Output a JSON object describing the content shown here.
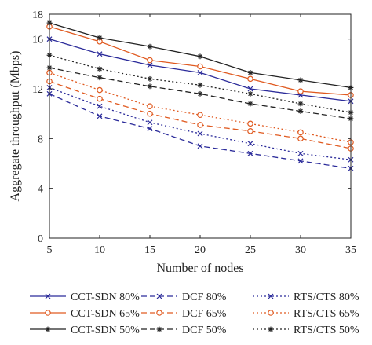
{
  "chart_data": {
    "type": "line",
    "title": "",
    "xlabel": "Number of nodes",
    "ylabel": "Aggregate throughput (Mbps)",
    "x": [
      5,
      10,
      15,
      20,
      25,
      30,
      35
    ],
    "xlim": [
      5,
      35
    ],
    "ylim": [
      0,
      18
    ],
    "xticks": [
      "5",
      "10",
      "15",
      "20",
      "25",
      "30",
      "35"
    ],
    "yticks": [
      "0",
      "4",
      "8",
      "12",
      "16",
      "18"
    ],
    "grid": false,
    "legend_position": "bottom, outside plot area, 3 columns",
    "series": [
      {
        "name": "CCT-SDN 80%",
        "values": [
          16.0,
          14.8,
          13.9,
          13.3,
          12.0,
          11.5,
          11.0
        ],
        "color": "#2b2b9a",
        "dash": "solid",
        "marker": "x"
      },
      {
        "name": "CCT-SDN 65%",
        "values": [
          17.0,
          15.8,
          14.3,
          13.8,
          12.8,
          11.8,
          11.5
        ],
        "color": "#e05a20",
        "dash": "solid",
        "marker": "o"
      },
      {
        "name": "CCT-SDN 50%",
        "values": [
          17.3,
          16.1,
          15.4,
          14.6,
          13.3,
          12.7,
          12.1
        ],
        "color": "#222222",
        "dash": "solid",
        "marker": "*"
      },
      {
        "name": "DCF 80%",
        "values": [
          11.6,
          9.8,
          8.8,
          7.4,
          6.8,
          6.2,
          5.6
        ],
        "color": "#2b2b9a",
        "dash": "dashed",
        "marker": "x"
      },
      {
        "name": "DCF 65%",
        "values": [
          12.6,
          11.2,
          10.0,
          9.1,
          8.6,
          8.0,
          7.2
        ],
        "color": "#e05a20",
        "dash": "dashed",
        "marker": "o"
      },
      {
        "name": "DCF 50%",
        "values": [
          13.7,
          12.9,
          12.2,
          11.6,
          10.8,
          10.2,
          9.6
        ],
        "color": "#222222",
        "dash": "dashed",
        "marker": "*"
      },
      {
        "name": "RTS/CTS 80%",
        "values": [
          12.1,
          10.6,
          9.3,
          8.4,
          7.6,
          6.8,
          6.3
        ],
        "color": "#2b2b9a",
        "dash": "dotted",
        "marker": "x"
      },
      {
        "name": "RTS/CTS 65%",
        "values": [
          13.3,
          11.9,
          10.6,
          9.9,
          9.2,
          8.5,
          7.7
        ],
        "color": "#e05a20",
        "dash": "dotted",
        "marker": "o"
      },
      {
        "name": "RTS/CTS 50%",
        "values": [
          14.7,
          13.6,
          12.8,
          12.3,
          11.6,
          10.8,
          10.1
        ],
        "color": "#222222",
        "dash": "dotted",
        "marker": "*"
      }
    ]
  }
}
